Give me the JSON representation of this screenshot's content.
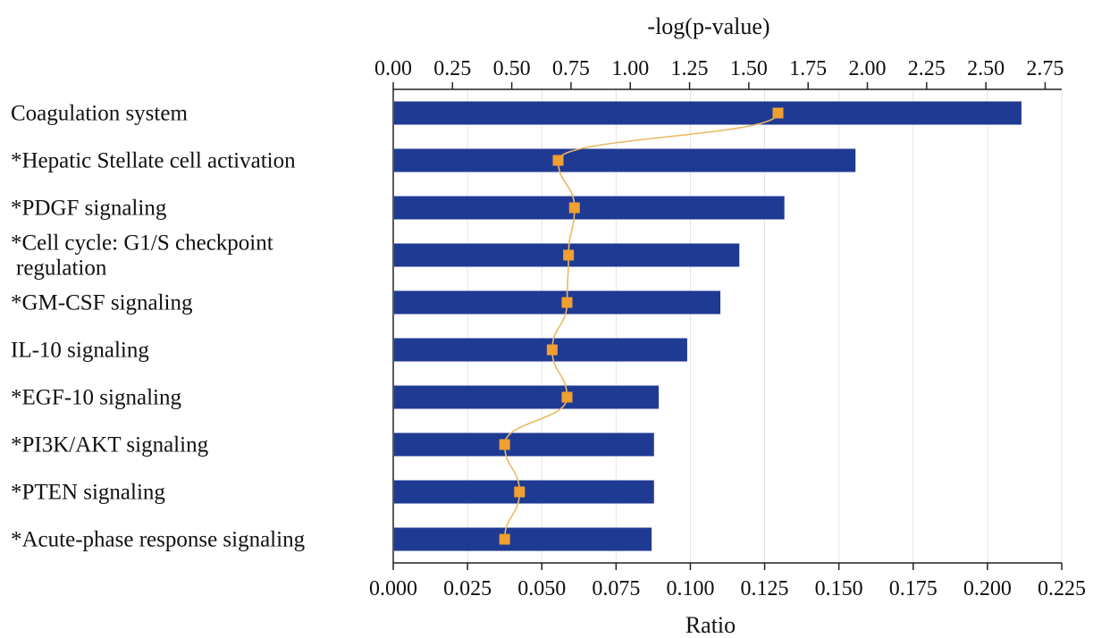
{
  "chart_data": {
    "type": "bar",
    "orientation": "horizontal",
    "categories": [
      "Coagulation system",
      "*Hepatic Stellate cell activation",
      "*PDGF signaling",
      "*Cell cycle: G1/S checkpoint regulation",
      "*GM-CSF signaling",
      "IL-10 signaling",
      "*EGF-10 signaling",
      "*PI3K/AKT signaling",
      "*PTEN signaling",
      "*Acute-phase response signaling"
    ],
    "category_lines": [
      [
        "Coagulation system"
      ],
      [
        "*Hepatic Stellate cell activation"
      ],
      [
        "*PDGF signaling"
      ],
      [
        "*Cell cycle: G1/S checkpoint",
        "regulation"
      ],
      [
        "*GM-CSF signaling"
      ],
      [
        "IL-10 signaling"
      ],
      [
        "*EGF-10 signaling"
      ],
      [
        "*PI3K/AKT signaling"
      ],
      [
        "*PTEN signaling"
      ],
      [
        "*Acute-phase response signaling"
      ]
    ],
    "series": [
      {
        "axis": "top",
        "kind": "bar",
        "values": [
          2.65,
          1.95,
          1.65,
          1.46,
          1.38,
          1.24,
          1.12,
          1.1,
          1.1,
          1.09
        ]
      },
      {
        "axis": "bottom",
        "kind": "line",
        "values": [
          0.1295,
          0.0555,
          0.061,
          0.059,
          0.0585,
          0.0535,
          0.0585,
          0.0375,
          0.0425,
          0.0375
        ]
      }
    ],
    "top_axis": {
      "label": "-log(p-value)",
      "range": [
        0,
        2.82
      ],
      "ticks": [
        "0.00",
        "0.25",
        "0.50",
        "0.75",
        "1.00",
        "1.25",
        "1.50",
        "1.75",
        "2.00",
        "2.25",
        "2.50",
        "2.75"
      ]
    },
    "bottom_axis": {
      "label": "Ratio",
      "range": [
        0,
        0.225
      ],
      "ticks": [
        "0.000",
        "0.025",
        "0.050",
        "0.075",
        "0.100",
        "0.125",
        "0.150",
        "0.175",
        "0.200",
        "0.225"
      ]
    },
    "colors": {
      "bar": "#1f3a93",
      "line": "#e8b964",
      "marker": "#f0a030",
      "grid": "#e3e3e3"
    },
    "grid": true
  }
}
